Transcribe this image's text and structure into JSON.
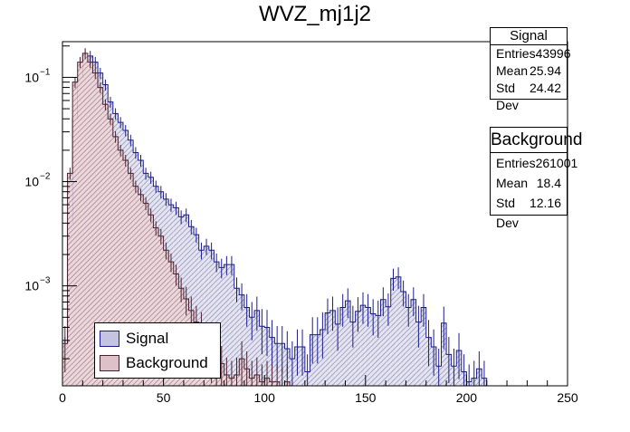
{
  "chart_data": {
    "type": "histogram",
    "title": "WVZ_mj1j2",
    "xlabel": "",
    "ylabel": "",
    "xlim": [
      0,
      250
    ],
    "ylim": [
      0.00011,
      0.22
    ],
    "yscale": "log",
    "bin_width": 2.5,
    "x_ticks": [
      0,
      50,
      100,
      150,
      200,
      250
    ],
    "x_tick_labels": [
      "0",
      "50",
      "100",
      "150",
      "200",
      "250"
    ],
    "y_ticks": [
      0.001,
      0.01,
      0.1
    ],
    "y_tick_labels": [
      "10",
      "10",
      "10"
    ],
    "y_tick_exponents": [
      "−3",
      "−2",
      "−1"
    ],
    "series": [
      {
        "name": "Signal",
        "x": [
          1.25,
          3.75,
          6.25,
          8.75,
          11.25,
          13.75,
          16.25,
          18.75,
          21.25,
          23.75,
          26.25,
          28.75,
          31.25,
          33.75,
          36.25,
          38.75,
          41.25,
          43.75,
          46.25,
          48.75,
          51.25,
          53.75,
          56.25,
          58.75,
          61.25,
          63.75,
          66.25,
          68.75,
          71.25,
          73.75,
          76.25,
          78.75,
          81.25,
          83.75,
          86.25,
          88.75,
          91.25,
          93.75,
          96.25,
          98.75,
          101.25,
          103.75,
          106.25,
          108.75,
          111.25,
          113.75,
          116.25,
          118.75,
          121.25,
          123.75,
          126.25,
          128.75,
          131.25,
          133.75,
          136.25,
          138.75,
          141.25,
          143.75,
          146.25,
          148.75,
          151.25,
          153.75,
          156.25,
          158.75,
          161.25,
          163.75,
          166.25,
          168.75,
          171.25,
          173.75,
          176.25,
          178.75,
          181.25,
          183.75,
          186.25,
          188.75,
          191.25,
          193.75,
          196.25,
          198.75,
          201.25,
          203.75,
          206.25,
          208.75
        ],
        "values": [
          0.00022,
          0.004,
          0.04,
          0.1,
          0.16,
          0.16,
          0.14,
          0.11,
          0.085,
          0.058,
          0.045,
          0.037,
          0.031,
          0.025,
          0.019,
          0.016,
          0.012,
          0.011,
          0.009,
          0.008,
          0.0068,
          0.006,
          0.0056,
          0.0046,
          0.0048,
          0.0037,
          0.0031,
          0.0022,
          0.0024,
          0.0022,
          0.0017,
          0.0015,
          0.0016,
          0.0016,
          0.00095,
          0.00082,
          0.00062,
          0.0005,
          0.00058,
          0.00041,
          0.0004,
          0.00032,
          0.00028,
          0.00028,
          0.00025,
          0.0002,
          0.00026,
          0.00026,
          0.00015,
          0.00034,
          0.00034,
          0.00038,
          0.00055,
          0.00058,
          0.00043,
          0.00062,
          0.00072,
          0.00045,
          0.00057,
          0.00065,
          0.00062,
          0.00054,
          0.00052,
          0.00074,
          0.00063,
          0.00118,
          0.00122,
          0.00088,
          0.00062,
          0.00074,
          0.00045,
          0.00062,
          0.00032,
          0.00026,
          0.00017,
          0.00044,
          0.00022,
          0.00017,
          0.00024,
          0.00015,
          0.00012,
          0.00013,
          0.00016,
          0.00013
        ],
        "fill": "#c4c4e0",
        "line": "#1b1b8f"
      },
      {
        "name": "Background",
        "x": [
          1.25,
          3.75,
          6.25,
          8.75,
          11.25,
          13.75,
          16.25,
          18.75,
          21.25,
          23.75,
          26.25,
          28.75,
          31.25,
          33.75,
          36.25,
          38.75,
          41.25,
          43.75,
          46.25,
          48.75,
          51.25,
          53.75,
          56.25,
          58.75,
          61.25,
          63.75,
          66.25,
          68.75,
          71.25,
          73.75,
          76.25,
          78.75,
          81.25,
          83.75,
          86.25,
          88.75,
          91.25,
          93.75,
          96.25,
          98.75,
          101.25,
          103.75,
          106.25,
          108.75,
          111.25
        ],
        "values": [
          0.00028,
          0.012,
          0.09,
          0.14,
          0.17,
          0.14,
          0.11,
          0.08,
          0.055,
          0.04,
          0.027,
          0.02,
          0.016,
          0.012,
          0.009,
          0.0075,
          0.0062,
          0.0048,
          0.0036,
          0.003,
          0.0022,
          0.0017,
          0.0013,
          0.00095,
          0.00075,
          0.00058,
          0.00045,
          0.00038,
          0.0003,
          0.00022,
          0.00019,
          0.00018,
          0.00014,
          0.00013,
          0.00014,
          0.0002,
          0.00016,
          0.00013,
          0.00014,
          0.00012,
          0.00013,
          0.00012,
          0.00012,
          0.00011,
          0.00012
        ],
        "fill": "#dcc2c8",
        "line": "#4a2030"
      }
    ],
    "legend": {
      "position": "bottom-left",
      "entries": [
        "Signal",
        "Background"
      ]
    },
    "stat_boxes": [
      {
        "title": "Signal",
        "rows": [
          {
            "label": "Entries",
            "value": "43996"
          },
          {
            "label": "Mean",
            "value": "25.94"
          },
          {
            "label": "Std Dev",
            "value": "24.42"
          }
        ]
      },
      {
        "title": "Background",
        "rows": [
          {
            "label": "Entries",
            "value": "261001"
          },
          {
            "label": "Mean",
            "value": "18.4"
          },
          {
            "label": "Std Dev",
            "value": "12.16"
          }
        ]
      }
    ]
  }
}
